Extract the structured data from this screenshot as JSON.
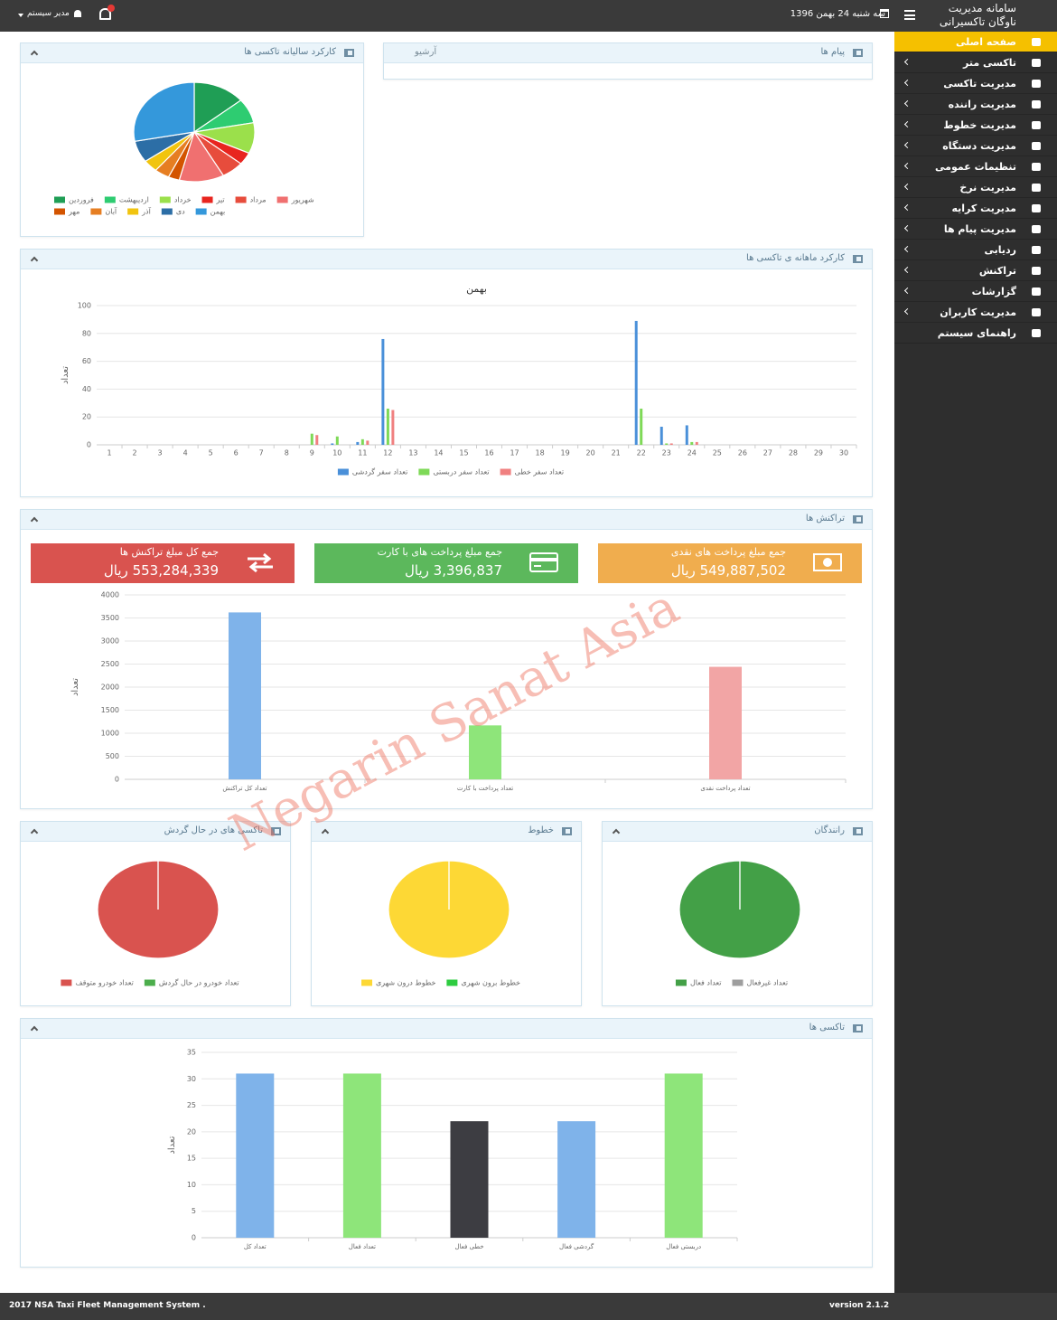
{
  "header": {
    "title_line1": "سامانه مدیریت",
    "title_line2": "ناوگان تاکسیرانی",
    "date": "سه شنبه 24 بهمن 1396",
    "user": "مدیر سیستم"
  },
  "sidebar": {
    "items": [
      "صفحه اصلی",
      "تاکسی متر",
      "مدیریت تاکسی",
      "مدیریت راننده",
      "مدیریت خطوط",
      "مدیریت دستگاه",
      "تنظیمات عمومی",
      "مدیریت نرخ",
      "مدیریت کرایه",
      "مدیریت پیام ها",
      "ردیابی",
      "تراکنش",
      "گزارشات",
      "مدیریت کاربران",
      "راهنمای سیستم"
    ]
  },
  "messages": {
    "title": "پیام ها",
    "link": "آرشیو"
  },
  "transaction_summary": [
    {
      "label": "جمع کل مبلغ تراکنش ها",
      "amount": "553,284,339 ریال",
      "color": "#d9534f"
    },
    {
      "label": "جمع مبلغ پرداخت های با کارت",
      "amount": "3,396,837 ریال",
      "color": "#5cb85c"
    },
    {
      "label": "جمع مبلغ پرداخت های نقدی",
      "amount": "549,887,502 ریال",
      "color": "#f0ad4e"
    }
  ],
  "watermark": "Negarin Sanat Asia",
  "footer": {
    "copyright": "2017 NSA Taxi Fleet Management System .",
    "version": "version 2.1.2"
  },
  "chart_data": [
    {
      "type": "pie",
      "title": "کارکرد سالیانه تاکسی ها",
      "categories": [
        "فروردین",
        "اردیبهشت",
        "خرداد",
        "تیر",
        "مرداد",
        "شهریور",
        "مهر",
        "آبان",
        "آذر",
        "دی",
        "بهمن"
      ],
      "values": [
        14,
        8,
        10,
        4,
        6,
        12,
        3,
        4,
        4,
        7,
        28
      ],
      "colors": [
        "#1f9e55",
        "#2ecc71",
        "#9be04b",
        "#e8251f",
        "#e74c3c",
        "#f07070",
        "#d35400",
        "#e67e22",
        "#f1c40f",
        "#2c6ea6",
        "#3498db"
      ]
    },
    {
      "type": "bar",
      "title": "کارکرد ماهانه ی تاکسی ها",
      "subtitle": "بهمن",
      "y_label": "تعداد",
      "categories": [
        1,
        2,
        3,
        4,
        5,
        6,
        7,
        8,
        9,
        10,
        11,
        12,
        13,
        14,
        15,
        16,
        17,
        18,
        19,
        20,
        21,
        22,
        23,
        24,
        25,
        26,
        27,
        28,
        29,
        30
      ],
      "series": [
        {
          "name": "تعداد سفر گردشی",
          "color": "#4a90d9",
          "values": [
            0,
            0,
            0,
            0,
            0,
            0,
            0,
            0,
            0,
            1,
            2,
            76,
            0,
            0,
            0,
            0,
            0,
            0,
            0,
            0,
            0,
            89,
            13,
            14,
            0,
            0,
            0,
            0,
            0,
            0
          ]
        },
        {
          "name": "تعداد سفر دربستی",
          "color": "#7ed957",
          "values": [
            0,
            0,
            0,
            0,
            0,
            0,
            0,
            0,
            8,
            6,
            4,
            26,
            0,
            0,
            0,
            0,
            0,
            0,
            0,
            0,
            0,
            26,
            1,
            2,
            0,
            0,
            0,
            0,
            0,
            0
          ]
        },
        {
          "name": "تعداد سفر خطی",
          "color": "#f08080",
          "values": [
            0,
            0,
            0,
            0,
            0,
            0,
            0,
            0,
            7,
            0,
            3,
            25,
            0,
            0,
            0,
            0,
            0,
            0,
            0,
            0,
            0,
            0,
            1,
            2,
            0,
            0,
            0,
            0,
            0,
            0
          ]
        }
      ],
      "ylim": [
        0,
        100
      ],
      "yticks": [
        0,
        20,
        40,
        60,
        80,
        100
      ],
      "grid": true
    },
    {
      "type": "bar",
      "title": "تراکنش ها",
      "y_label": "تعداد",
      "categories": [
        "تعداد کل تراکنش",
        "تعداد پرداخت با کارت",
        "تعداد پرداخت نقدی"
      ],
      "values": [
        3620,
        1170,
        2440
      ],
      "colors": [
        "#7fb3ea",
        "#8ee57a",
        "#f2a5a5"
      ],
      "ylim": [
        0,
        4000
      ],
      "yticks": [
        0,
        500,
        1000,
        1500,
        2000,
        2500,
        3000,
        3500,
        4000
      ],
      "grid": true
    },
    {
      "type": "pie",
      "title": "تاکسی های در حال گردش",
      "categories": [
        "تعداد خودرو متوقف",
        "تعداد خودرو در حال گردش"
      ],
      "values": [
        31,
        0
      ],
      "colors": [
        "#d9534f",
        "#4cae4c"
      ]
    },
    {
      "type": "pie",
      "title": "خطوط",
      "categories": [
        "خطوط درون شهری",
        "خطوط برون شهری"
      ],
      "values": [
        5,
        0
      ],
      "colors": [
        "#fdd835",
        "#2ecc40"
      ]
    },
    {
      "type": "pie",
      "title": "رانندگان",
      "categories": [
        "تعداد فعال",
        "تعداد غیرفعال"
      ],
      "values": [
        31,
        0
      ],
      "colors": [
        "#43a047",
        "#9e9e9e"
      ]
    },
    {
      "type": "bar",
      "title": "تاکسی ها",
      "y_label": "تعداد",
      "categories": [
        "تعداد کل",
        "تعداد فعال",
        "خطی فعال",
        "گردشی فعال",
        "دربستی فعال"
      ],
      "values": [
        31,
        31,
        22,
        22,
        31
      ],
      "colors": [
        "#7fb3ea",
        "#8ee57a",
        "#3d3d42",
        "#7fb3ea",
        "#8ee57a"
      ],
      "ylim": [
        0,
        35
      ],
      "yticks": [
        0,
        5,
        10,
        15,
        20,
        25,
        30,
        35
      ],
      "grid": true
    }
  ]
}
